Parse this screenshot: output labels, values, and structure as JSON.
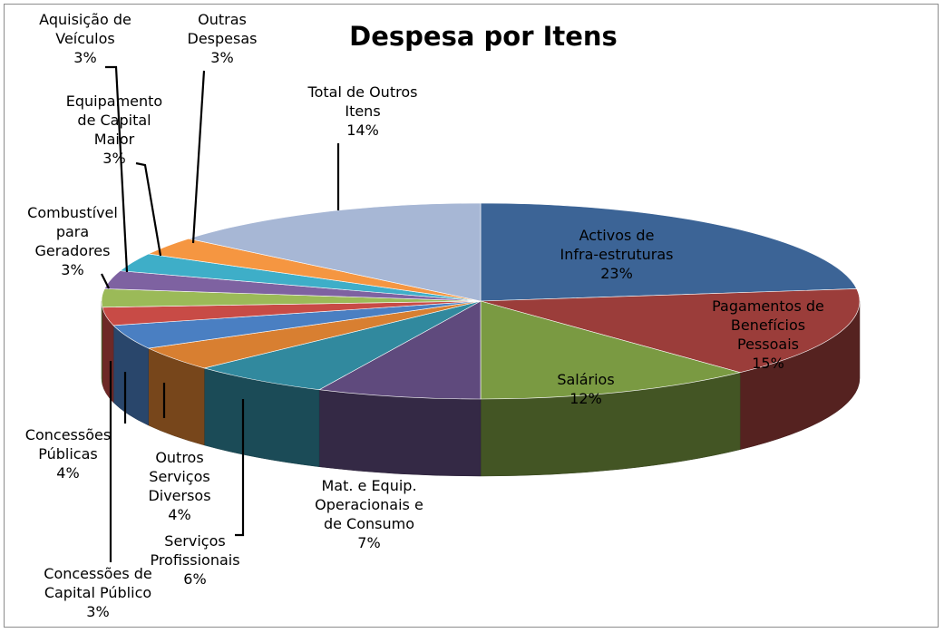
{
  "chart_data": {
    "type": "pie",
    "title": "Despesa por Itens",
    "slices": [
      {
        "label": "Activos de Infra-estruturas",
        "value": 23,
        "display": "23%",
        "color": "#3c6496"
      },
      {
        "label": "Pagamentos de Benefícios Pessoais",
        "value": 15,
        "display": "15%",
        "color": "#9b3d3a"
      },
      {
        "label": "Salários",
        "value": 12,
        "display": "12%",
        "color": "#7a9a42"
      },
      {
        "label": "Mat. e Equip. Operacionais e de Consumo",
        "value": 7,
        "display": "7%",
        "color": "#5f4a7d"
      },
      {
        "label": "Serviços Profissionais",
        "value": 6,
        "display": "6%",
        "color": "#31899e"
      },
      {
        "label": "Outros Serviços Diversos",
        "value": 4,
        "display": "4%",
        "color": "#d87f31"
      },
      {
        "label": "Concessões Públicas",
        "value": 4,
        "display": "4%",
        "color": "#4a7fc2"
      },
      {
        "label": "Concessões de Capital Público",
        "value": 3,
        "display": "3%",
        "color": "#c84b46"
      },
      {
        "label": "Combustível para Geradores",
        "value": 3,
        "display": "3%",
        "color": "#9bba58"
      },
      {
        "label": "Equipamento de Capital Maior",
        "value": 3,
        "display": "3%",
        "color": "#7e62a1"
      },
      {
        "label": "Aquisição de Veículos",
        "value": 3,
        "display": "3%",
        "color": "#3eaec8"
      },
      {
        "label": "Outras Despesas",
        "value": 3,
        "display": "3%",
        "color": "#f59641"
      },
      {
        "label": "Total de Outros Itens",
        "value": 14,
        "display": "14%",
        "color": "#a7b7d5"
      }
    ]
  }
}
